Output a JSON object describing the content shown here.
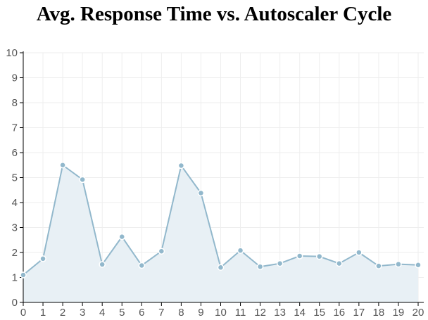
{
  "chart_data": {
    "type": "area",
    "title": "Avg. Response Time vs. Autoscaler Cycle",
    "xlabel": "",
    "ylabel": "",
    "x": [
      0,
      1,
      2,
      3,
      4,
      5,
      6,
      7,
      8,
      9,
      10,
      11,
      12,
      13,
      14,
      15,
      16,
      17,
      18,
      19,
      20
    ],
    "series": [
      {
        "values": [
          1.1,
          1.75,
          5.5,
          4.92,
          1.52,
          2.63,
          1.48,
          2.05,
          5.48,
          4.38,
          1.4,
          2.08,
          1.43,
          1.56,
          1.86,
          1.84,
          1.56,
          2.0,
          1.46,
          1.53,
          1.5
        ]
      }
    ],
    "xlim": [
      0,
      20
    ],
    "ylim": [
      0,
      10
    ],
    "xticks": [
      0,
      1,
      2,
      3,
      4,
      5,
      6,
      7,
      8,
      9,
      10,
      11,
      12,
      13,
      14,
      15,
      16,
      17,
      18,
      19,
      20
    ],
    "yticks": [
      0,
      1,
      2,
      3,
      4,
      5,
      6,
      7,
      8,
      9,
      10
    ],
    "grid": true,
    "legend": "none",
    "colors": {
      "line": "#92b8cc",
      "marker": "#92b8cc",
      "fill": "#e8f0f5",
      "grid": "#eeeeee",
      "axis": "#000000"
    }
  }
}
